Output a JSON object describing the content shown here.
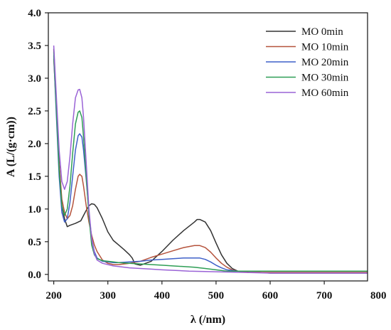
{
  "chart_data": {
    "type": "line",
    "title": "",
    "xlabel": "λ (/nm)",
    "ylabel": "A (L/(g·cm))",
    "xlim": [
      190,
      780
    ],
    "ylim": [
      -0.1,
      4.0
    ],
    "xticks": [
      200,
      300,
      400,
      500,
      600,
      700,
      800
    ],
    "yticks": [
      0.0,
      0.5,
      1.0,
      1.5,
      2.0,
      2.5,
      3.0,
      3.5,
      4.0
    ],
    "ytick_labels": [
      "0.0",
      "0.5",
      "1.0",
      "1.5",
      "2.0",
      "2.5",
      "3.0",
      "3.5",
      "4.0"
    ],
    "grid": false,
    "legend_position": "top-right",
    "series": [
      {
        "name": "MO 0min",
        "color": "#333333",
        "x": [
          200,
          205,
          210,
          215,
          220,
          225,
          230,
          240,
          250,
          255,
          260,
          265,
          270,
          275,
          280,
          290,
          300,
          310,
          320,
          330,
          340,
          345,
          350,
          360,
          380,
          400,
          420,
          440,
          460,
          465,
          470,
          480,
          490,
          500,
          510,
          520,
          530,
          540,
          550,
          560,
          580,
          600,
          650,
          700,
          750,
          780
        ],
        "y": [
          3.45,
          2.6,
          1.7,
          1.05,
          0.85,
          0.73,
          0.75,
          0.78,
          0.82,
          0.9,
          0.98,
          1.05,
          1.08,
          1.07,
          1.02,
          0.85,
          0.65,
          0.52,
          0.45,
          0.38,
          0.3,
          0.25,
          0.16,
          0.14,
          0.2,
          0.35,
          0.52,
          0.67,
          0.8,
          0.84,
          0.84,
          0.8,
          0.67,
          0.48,
          0.3,
          0.17,
          0.09,
          0.05,
          0.04,
          0.03,
          0.03,
          0.02,
          0.02,
          0.02,
          0.02,
          0.02
        ]
      },
      {
        "name": "MO 10min",
        "color": "#b5533c",
        "x": [
          200,
          205,
          210,
          215,
          220,
          225,
          230,
          235,
          240,
          245,
          248,
          252,
          255,
          260,
          265,
          270,
          275,
          280,
          290,
          300,
          310,
          320,
          340,
          360,
          380,
          400,
          420,
          440,
          460,
          470,
          480,
          490,
          500,
          510,
          520,
          530,
          540,
          550,
          560,
          580,
          600,
          650,
          700,
          750,
          780
        ],
        "y": [
          3.3,
          2.5,
          1.7,
          1.15,
          0.95,
          0.85,
          0.9,
          1.05,
          1.3,
          1.5,
          1.53,
          1.5,
          1.35,
          1.05,
          0.8,
          0.6,
          0.45,
          0.35,
          0.22,
          0.17,
          0.15,
          0.15,
          0.17,
          0.2,
          0.26,
          0.31,
          0.36,
          0.41,
          0.44,
          0.44,
          0.41,
          0.34,
          0.25,
          0.17,
          0.11,
          0.07,
          0.05,
          0.04,
          0.03,
          0.03,
          0.03,
          0.03,
          0.03,
          0.03,
          0.03
        ]
      },
      {
        "name": "MO 20min",
        "color": "#3f60c9",
        "x": [
          200,
          205,
          210,
          215,
          220,
          225,
          230,
          235,
          240,
          245,
          248,
          252,
          255,
          260,
          265,
          270,
          275,
          280,
          290,
          300,
          310,
          320,
          340,
          360,
          380,
          400,
          420,
          440,
          460,
          470,
          480,
          490,
          500,
          510,
          520,
          530,
          540,
          550,
          560,
          580,
          600,
          650,
          700,
          750,
          780
        ],
        "y": [
          3.35,
          2.4,
          1.5,
          0.95,
          0.8,
          0.85,
          1.1,
          1.5,
          1.9,
          2.12,
          2.15,
          2.1,
          1.9,
          1.45,
          0.95,
          0.55,
          0.35,
          0.25,
          0.2,
          0.19,
          0.18,
          0.18,
          0.19,
          0.2,
          0.22,
          0.23,
          0.24,
          0.25,
          0.25,
          0.25,
          0.23,
          0.19,
          0.14,
          0.1,
          0.07,
          0.06,
          0.05,
          0.05,
          0.05,
          0.05,
          0.05,
          0.05,
          0.05,
          0.05,
          0.05
        ]
      },
      {
        "name": "MO 30min",
        "color": "#2e9e55",
        "x": [
          200,
          205,
          210,
          215,
          220,
          225,
          230,
          235,
          240,
          245,
          248,
          252,
          255,
          260,
          265,
          270,
          275,
          280,
          290,
          300,
          310,
          320,
          340,
          360,
          380,
          400,
          420,
          440,
          460,
          480,
          500,
          520,
          540,
          560,
          580,
          600,
          650,
          700,
          750,
          780
        ],
        "y": [
          3.4,
          2.5,
          1.6,
          1.05,
          0.9,
          1.0,
          1.35,
          1.85,
          2.3,
          2.48,
          2.5,
          2.4,
          2.1,
          1.5,
          0.9,
          0.45,
          0.3,
          0.24,
          0.21,
          0.2,
          0.19,
          0.18,
          0.17,
          0.16,
          0.15,
          0.14,
          0.13,
          0.12,
          0.11,
          0.09,
          0.07,
          0.05,
          0.05,
          0.05,
          0.05,
          0.05,
          0.05,
          0.05,
          0.05,
          0.05
        ]
      },
      {
        "name": "MO 60min",
        "color": "#9a63d6",
        "x": [
          200,
          205,
          210,
          215,
          220,
          225,
          230,
          235,
          240,
          245,
          248,
          252,
          255,
          260,
          265,
          270,
          275,
          280,
          290,
          300,
          310,
          320,
          340,
          360,
          380,
          400,
          450,
          500,
          550,
          600,
          650,
          700,
          750,
          780
        ],
        "y": [
          3.5,
          2.7,
          1.9,
          1.42,
          1.3,
          1.42,
          1.8,
          2.3,
          2.7,
          2.82,
          2.83,
          2.7,
          2.4,
          1.7,
          1.0,
          0.55,
          0.32,
          0.22,
          0.17,
          0.15,
          0.13,
          0.12,
          0.1,
          0.09,
          0.08,
          0.07,
          0.05,
          0.04,
          0.03,
          0.02,
          0.02,
          0.02,
          0.02,
          0.02
        ]
      }
    ]
  }
}
